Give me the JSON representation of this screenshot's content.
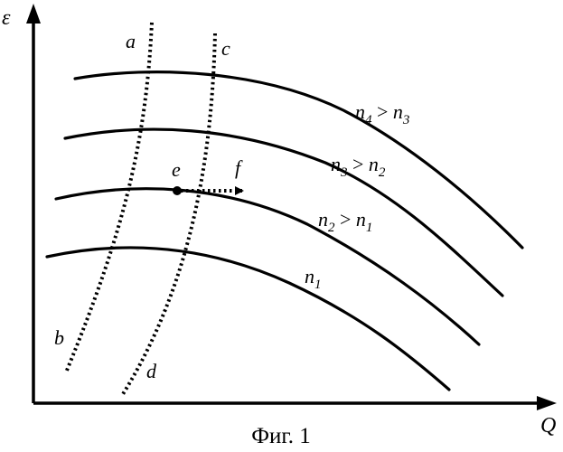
{
  "axes": {
    "y_label": "ε",
    "x_label": "Q"
  },
  "curves": [
    {
      "base": "n",
      "sub": "4",
      "rel": " > ",
      "base2": "n",
      "sub2": "3"
    },
    {
      "base": "n",
      "sub": "3",
      "rel": " > ",
      "base2": "n",
      "sub2": "2"
    },
    {
      "base": "n",
      "sub": "2",
      "rel": " > ",
      "base2": "n",
      "sub2": "1"
    },
    {
      "base": "n",
      "sub": "1",
      "rel": "",
      "base2": "",
      "sub2": ""
    }
  ],
  "boundary_lines": {
    "left": {
      "top_label": "a",
      "bottom_label": "b"
    },
    "right": {
      "top_label": "c",
      "bottom_label": "d"
    }
  },
  "operating_point": {
    "label": "e"
  },
  "direction": {
    "label": "f"
  },
  "caption": "Фиг. 1"
}
